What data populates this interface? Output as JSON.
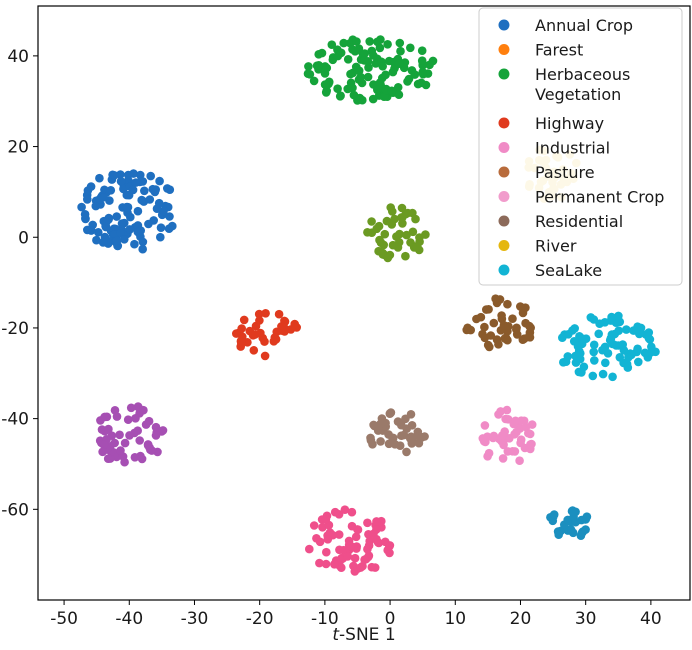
{
  "chart_data": {
    "type": "scatter",
    "title": "",
    "xlabel_prefix": "t",
    "xlabel_rest": "-SNE 1",
    "ylabel": "",
    "xlim": [
      -54,
      46
    ],
    "ylim": [
      -80,
      51
    ],
    "xticks": [
      -50,
      -40,
      -30,
      -20,
      -10,
      0,
      10,
      20,
      30,
      40
    ],
    "yticks": [
      -60,
      -40,
      -20,
      0,
      20,
      40
    ],
    "grid": false,
    "legend_position": "top-right",
    "legend": [
      {
        "label": "Annual Crop",
        "color": "#1f6fc0"
      },
      {
        "label": "Farest",
        "color": "#ff7f0e"
      },
      {
        "label": "Herbaceous Vegetation",
        "line1": "Herbaceous",
        "line2": "Vegetation",
        "color": "#15a33a"
      },
      {
        "label": "Highway",
        "color": "#e03a1e"
      },
      {
        "label": "Industrial",
        "color": "#f08bc6"
      },
      {
        "label": "Pasture",
        "color": "#b86b3c"
      },
      {
        "label": "Permanent Crop",
        "color": "#f19ccc"
      },
      {
        "label": "Residential",
        "color": "#8c6a5a"
      },
      {
        "label": "River",
        "color": "#e5b70f"
      },
      {
        "label": "SeaLake",
        "color": "#12b4d4"
      }
    ],
    "clusters": [
      {
        "name": "Annual Crop",
        "color": "#1f6fc0",
        "center": [
          -40,
          6
        ],
        "spread": [
          7.5,
          9
        ],
        "n": 110
      },
      {
        "name": "Herbaceous Vegetation",
        "color": "#15a33a",
        "center": [
          -3,
          37
        ],
        "spread": [
          10,
          7
        ],
        "n": 115
      },
      {
        "name": "River",
        "color": "#e5b70f",
        "center": [
          25,
          14
        ],
        "spread": [
          4.5,
          6
        ],
        "n": 40
      },
      {
        "name": "Olive cluster",
        "color": "#6b9a22",
        "center": [
          1,
          1
        ],
        "spread": [
          4.5,
          6
        ],
        "n": 45
      },
      {
        "name": "Pasture",
        "color": "#8a5a2b",
        "center": [
          17,
          -19
        ],
        "spread": [
          5.5,
          6
        ],
        "n": 45
      },
      {
        "name": "Highway",
        "color": "#e03a1e",
        "center": [
          -19,
          -21
        ],
        "spread": [
          5,
          5.5
        ],
        "n": 35
      },
      {
        "name": "SeaLake",
        "color": "#12b4d4",
        "center": [
          33,
          -24
        ],
        "spread": [
          8,
          7
        ],
        "n": 80
      },
      {
        "name": "Magenta cluster",
        "color": "#a64fb3",
        "center": [
          -40,
          -44
        ],
        "spread": [
          5.5,
          7
        ],
        "n": 55
      },
      {
        "name": "Residential",
        "color": "#9a7a6a",
        "center": [
          1,
          -43
        ],
        "spread": [
          4.5,
          5
        ],
        "n": 40
      },
      {
        "name": "Permanent Crop",
        "color": "#f08bc6",
        "center": [
          18,
          -44
        ],
        "spread": [
          4.5,
          6
        ],
        "n": 45
      },
      {
        "name": "Blue cluster",
        "color": "#1b8fbf",
        "center": [
          27,
          -63
        ],
        "spread": [
          3.5,
          4
        ],
        "n": 30
      },
      {
        "name": "Industrial",
        "color": "#ef4f8b",
        "center": [
          -6,
          -67
        ],
        "spread": [
          7,
          7
        ],
        "n": 75
      }
    ]
  }
}
